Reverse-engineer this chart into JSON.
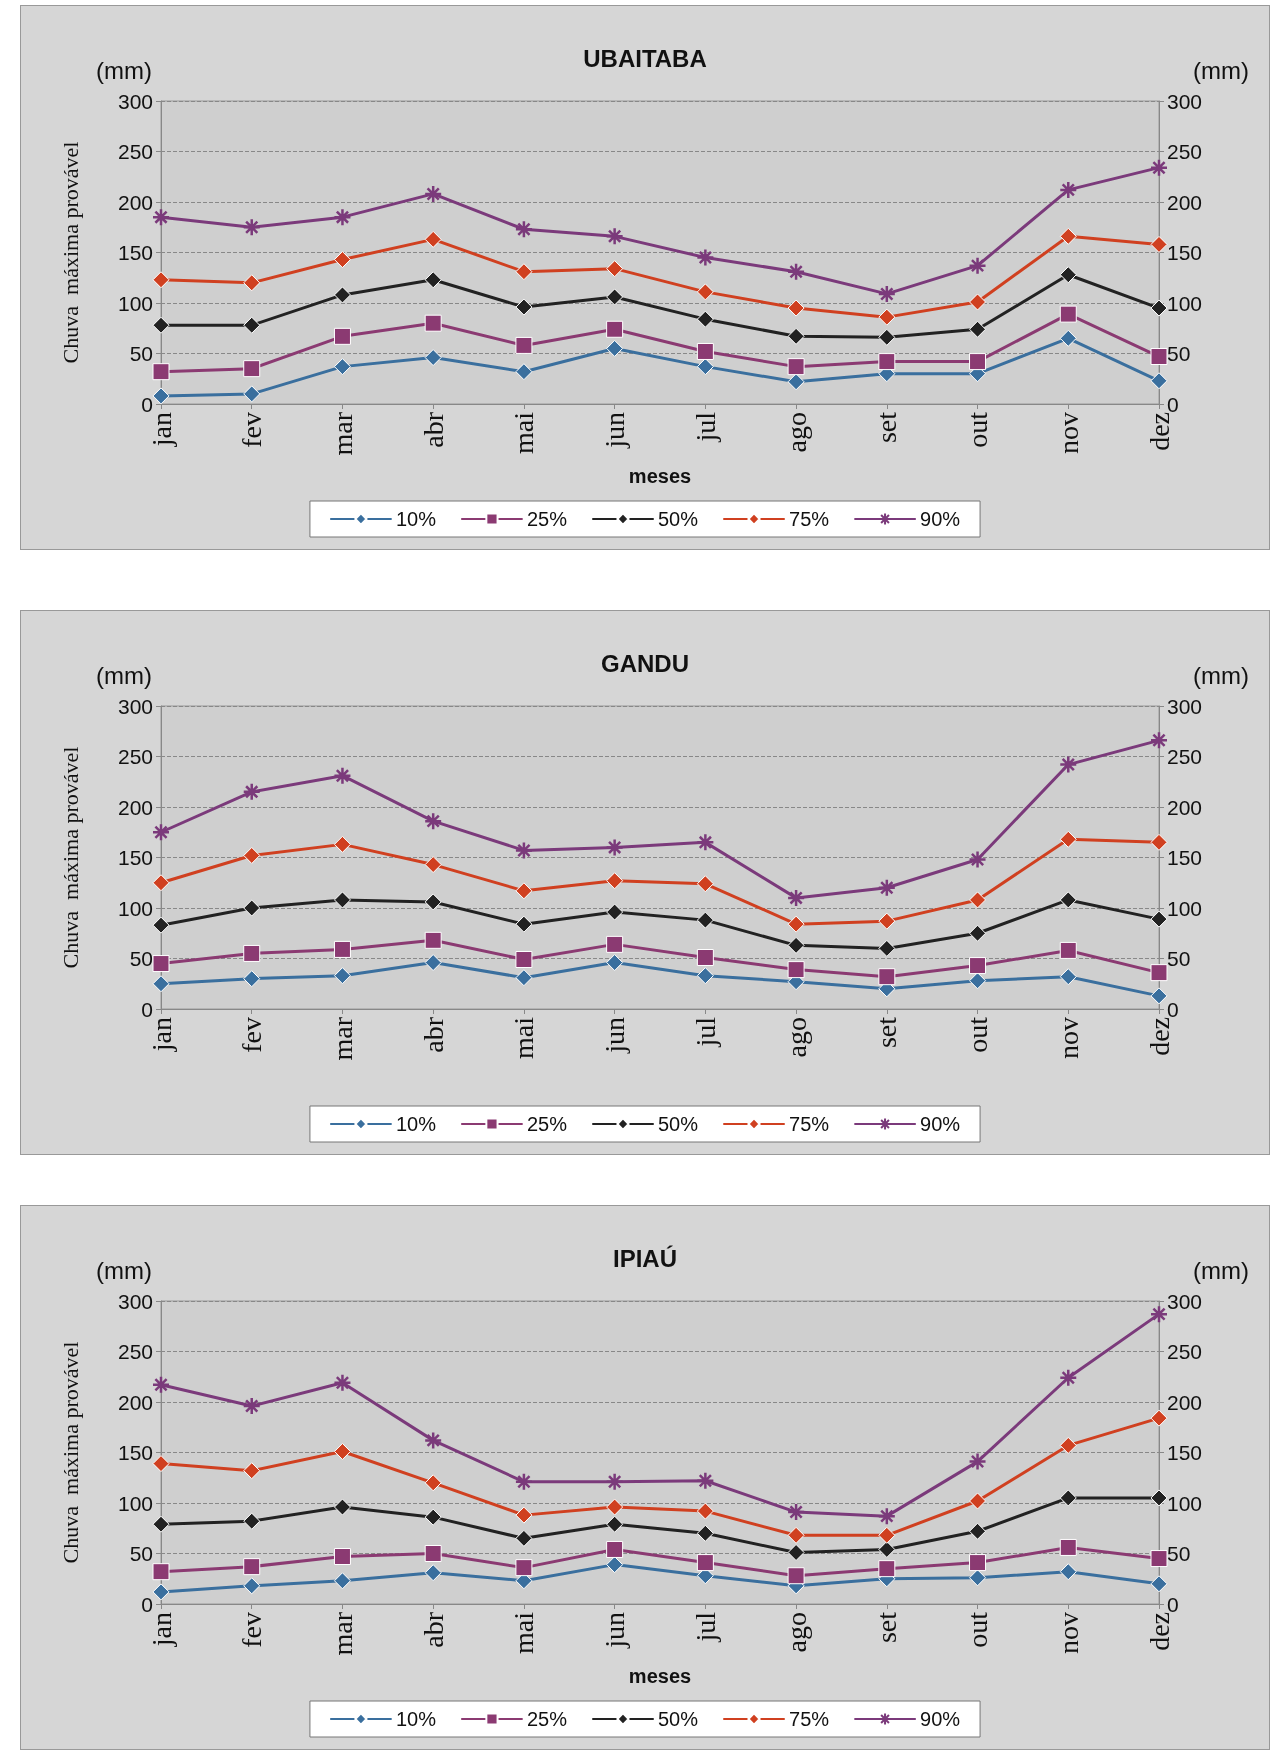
{
  "chart_data": [
    {
      "type": "line",
      "title": "UBAITABA",
      "xlabel": "meses",
      "ylabel": "Chuva  máxima provável",
      "annotations": [
        "(mm)",
        "(mm)"
      ],
      "categories": [
        "jan",
        "fev",
        "mar",
        "abr",
        "mai",
        "jun",
        "jul",
        "ago",
        "set",
        "out",
        "nov",
        "dez"
      ],
      "ylim": [
        0,
        300
      ],
      "yticks": [
        0,
        50,
        100,
        150,
        200,
        250,
        300
      ],
      "y2lim": [
        0,
        300
      ],
      "y2ticks": [
        0,
        50,
        100,
        150,
        200,
        250,
        300
      ],
      "grid": "y",
      "legend": "bottom",
      "line_style": "solid",
      "series": [
        {
          "name": "10%",
          "color": "#3a6f9e",
          "marker": "diamond",
          "values": [
            8,
            10,
            37,
            46,
            32,
            55,
            37,
            22,
            30,
            30,
            65,
            23
          ]
        },
        {
          "name": "25%",
          "color": "#8b3a72",
          "marker": "square",
          "values": [
            32,
            35,
            67,
            80,
            58,
            74,
            52,
            37,
            42,
            42,
            89,
            47
          ]
        },
        {
          "name": "50%",
          "color": "#222222",
          "marker": "diamond",
          "values": [
            78,
            78,
            108,
            123,
            96,
            106,
            84,
            67,
            66,
            74,
            128,
            95
          ]
        },
        {
          "name": "75%",
          "color": "#d04020",
          "marker": "diamond",
          "values": [
            123,
            120,
            143,
            163,
            131,
            134,
            111,
            95,
            86,
            101,
            166,
            158
          ]
        },
        {
          "name": "90%",
          "color": "#7b3a7b",
          "marker": "cross",
          "values": [
            185,
            175,
            185,
            208,
            173,
            166,
            145,
            131,
            109,
            137,
            212,
            234
          ]
        }
      ]
    },
    {
      "type": "line",
      "title": "GANDU",
      "ylabel": "Chuva  máxima provável",
      "annotations": [
        "(mm)",
        "(mm)"
      ],
      "categories": [
        "jan",
        "fev",
        "mar",
        "abr",
        "mai",
        "jun",
        "jul",
        "ago",
        "set",
        "out",
        "nov",
        "dez"
      ],
      "ylim": [
        0,
        300
      ],
      "yticks": [
        0,
        50,
        100,
        150,
        200,
        250,
        300
      ],
      "y2lim": [
        0,
        300
      ],
      "y2ticks": [
        0,
        50,
        100,
        150,
        200,
        250,
        300
      ],
      "grid": "y",
      "legend": "bottom",
      "line_style": "solid",
      "series": [
        {
          "name": "10%",
          "color": "#3a6f9e",
          "marker": "diamond",
          "values": [
            25,
            30,
            33,
            46,
            31,
            46,
            33,
            27,
            20,
            28,
            32,
            13
          ]
        },
        {
          "name": "25%",
          "color": "#8b3a72",
          "marker": "square",
          "values": [
            45,
            55,
            59,
            68,
            49,
            64,
            51,
            39,
            32,
            43,
            58,
            36
          ]
        },
        {
          "name": "50%",
          "color": "#222222",
          "marker": "diamond",
          "values": [
            83,
            100,
            108,
            106,
            84,
            96,
            88,
            63,
            60,
            75,
            108,
            89
          ]
        },
        {
          "name": "75%",
          "color": "#d04020",
          "marker": "diamond",
          "values": [
            125,
            152,
            163,
            143,
            117,
            127,
            124,
            84,
            87,
            108,
            168,
            165
          ]
        },
        {
          "name": "90%",
          "color": "#7b3a7b",
          "marker": "cross",
          "values": [
            175,
            215,
            231,
            186,
            157,
            160,
            165,
            110,
            120,
            148,
            242,
            266
          ]
        }
      ]
    },
    {
      "type": "line",
      "title": "IPIAÚ",
      "xlabel": "meses",
      "ylabel": "Chuva  máxima provável",
      "annotations": [
        "(mm)",
        "(mm)"
      ],
      "categories": [
        "jan",
        "fev",
        "mar",
        "abr",
        "mai",
        "jun",
        "jul",
        "ago",
        "set",
        "out",
        "nov",
        "dez"
      ],
      "ylim": [
        0,
        300
      ],
      "yticks": [
        0,
        50,
        100,
        150,
        200,
        250,
        300
      ],
      "y2lim": [
        0,
        300
      ],
      "y2ticks": [
        0,
        50,
        100,
        150,
        200,
        250,
        300
      ],
      "grid": "y",
      "legend": "bottom",
      "line_style": "solid",
      "series": [
        {
          "name": "10%",
          "color": "#3a6f9e",
          "marker": "diamond",
          "values": [
            12,
            18,
            23,
            31,
            23,
            39,
            28,
            18,
            25,
            26,
            32,
            20
          ]
        },
        {
          "name": "25%",
          "color": "#8b3a72",
          "marker": "square",
          "values": [
            32,
            37,
            47,
            50,
            36,
            54,
            41,
            28,
            35,
            41,
            56,
            45
          ]
        },
        {
          "name": "50%",
          "color": "#222222",
          "marker": "diamond",
          "values": [
            79,
            82,
            96,
            86,
            65,
            79,
            70,
            51,
            54,
            72,
            105,
            105
          ]
        },
        {
          "name": "75%",
          "color": "#d04020",
          "marker": "diamond",
          "values": [
            139,
            132,
            151,
            120,
            88,
            96,
            92,
            68,
            68,
            102,
            157,
            184
          ]
        },
        {
          "name": "90%",
          "color": "#7b3a7b",
          "marker": "cross",
          "values": [
            217,
            196,
            219,
            162,
            121,
            121,
            122,
            91,
            87,
            141,
            224,
            287
          ]
        }
      ]
    }
  ]
}
